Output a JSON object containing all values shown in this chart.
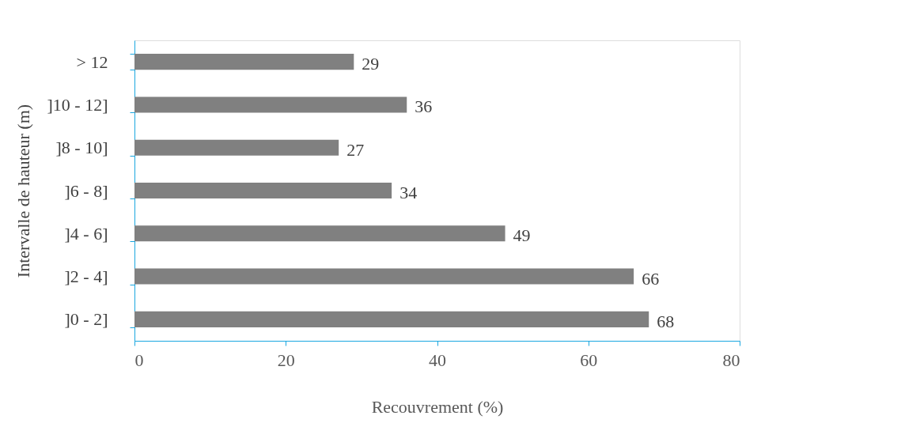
{
  "chart_data": {
    "type": "bar",
    "orientation": "horizontal",
    "categories": [
      "> 12",
      "]10 - 12]",
      "]8 - 10]",
      "]6 - 8]",
      "]4 - 6]",
      "]2 - 4]",
      "]0 - 2]"
    ],
    "values": [
      29,
      36,
      27,
      34,
      49,
      66,
      68
    ],
    "color": "#808080",
    "xlim": [
      0,
      80
    ],
    "xticks": [
      0,
      20,
      40,
      60,
      80
    ],
    "xlabel": "Recouvrement (%)",
    "ylabel": "Intervalle de hauteur (m)",
    "data_labels": true,
    "grid": false
  }
}
